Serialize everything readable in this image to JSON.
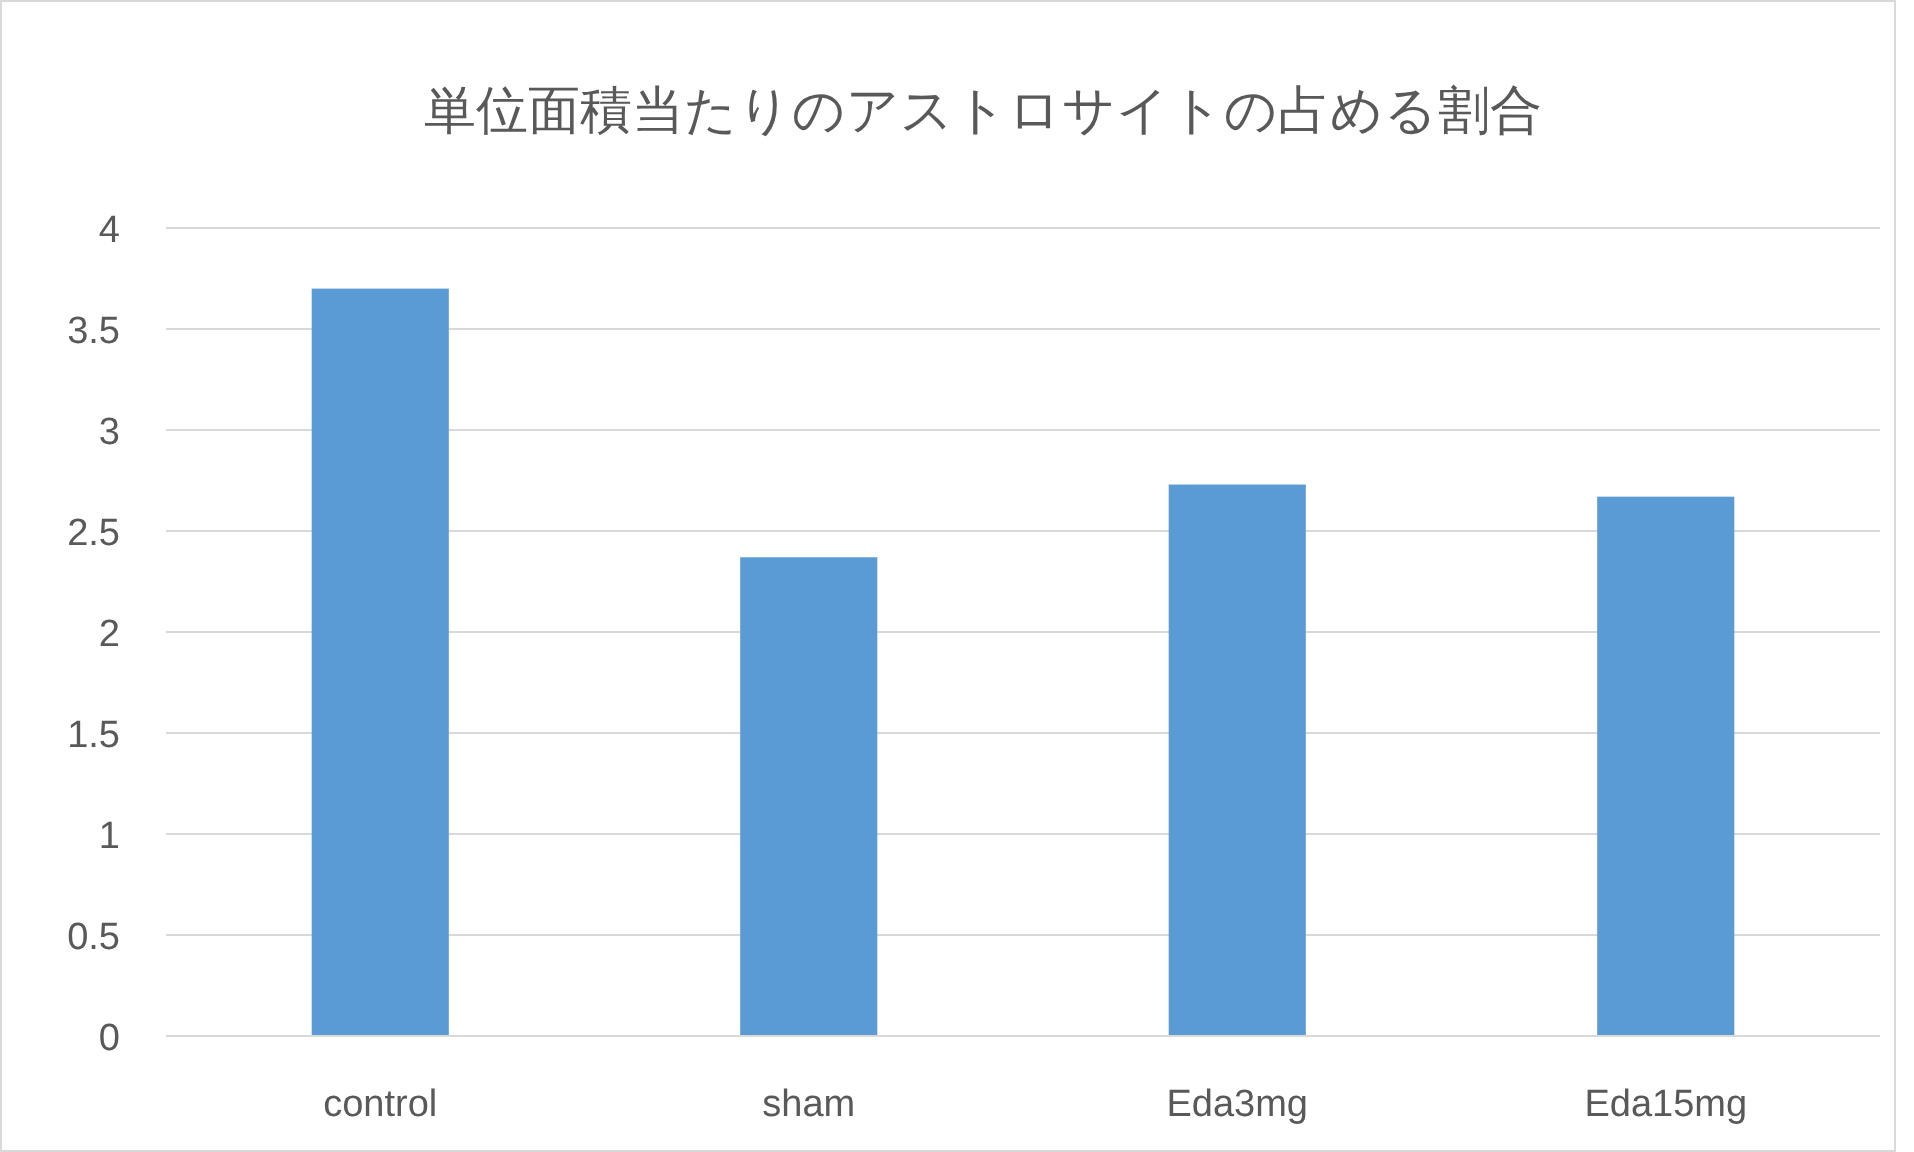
{
  "chart_data": {
    "type": "bar",
    "title": "単位面積当たりのアストロサイトの占める割合",
    "categories": [
      "control",
      "sham",
      "Eda3mg",
      "Eda15mg"
    ],
    "values": [
      3.7,
      2.37,
      2.73,
      2.67
    ],
    "color": "#5b9bd5",
    "ylim": [
      0,
      4
    ],
    "yticks": [
      0,
      0.5,
      1,
      1.5,
      2,
      2.5,
      3,
      3.5,
      4
    ],
    "grid": "y"
  }
}
